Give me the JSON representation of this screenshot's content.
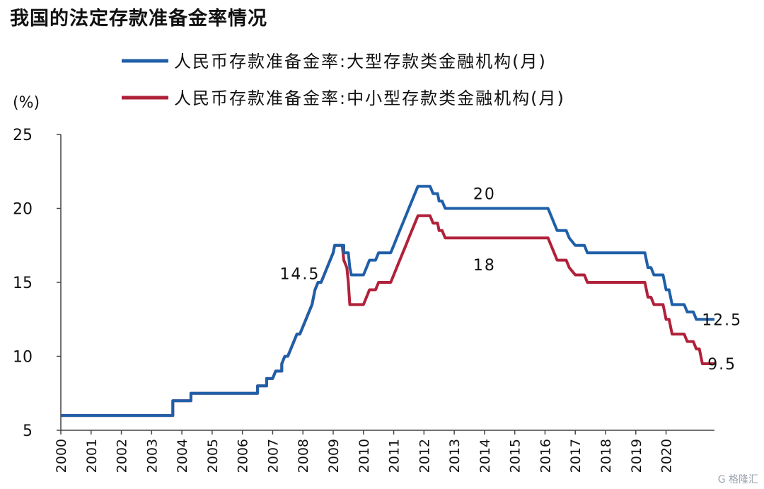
{
  "title": "我国的法定存款准备金率情况",
  "watermark": "G 格隆汇",
  "chart_data": {
    "type": "line",
    "title": "我国的法定存款准备金率情况",
    "ylabel": "(%)",
    "xlabel": "",
    "ylim": [
      5,
      25
    ],
    "xlim": [
      2000,
      2020.75
    ],
    "yticks": [
      "5",
      "10",
      "15",
      "20",
      "25"
    ],
    "xticks": [
      "2000",
      "2001",
      "2002",
      "2003",
      "2004",
      "2005",
      "2006",
      "2007",
      "2008",
      "2009",
      "2010",
      "2011",
      "2012",
      "2013",
      "2014",
      "2015",
      "2016",
      "2017",
      "2018",
      "2019",
      "2020"
    ],
    "grid": false,
    "legend_position": "top",
    "series": [
      {
        "name": "人民币存款准备金率:大型存款类金融机构(月)",
        "color": "#1f5fa8",
        "points": [
          [
            2000.0,
            6
          ],
          [
            2003.7,
            6
          ],
          [
            2003.7,
            7
          ],
          [
            2004.3,
            7
          ],
          [
            2004.3,
            7.5
          ],
          [
            2006.5,
            7.5
          ],
          [
            2006.5,
            8
          ],
          [
            2006.8,
            8
          ],
          [
            2006.8,
            8.5
          ],
          [
            2007.0,
            8.5
          ],
          [
            2007.1,
            9
          ],
          [
            2007.3,
            9
          ],
          [
            2007.3,
            9.5
          ],
          [
            2007.4,
            10
          ],
          [
            2007.5,
            10
          ],
          [
            2007.6,
            10.5
          ],
          [
            2007.7,
            11
          ],
          [
            2007.8,
            11.5
          ],
          [
            2007.9,
            11.5
          ],
          [
            2008.0,
            12
          ],
          [
            2008.1,
            12.5
          ],
          [
            2008.2,
            13
          ],
          [
            2008.3,
            13.5
          ],
          [
            2008.35,
            14
          ],
          [
            2008.4,
            14.5
          ],
          [
            2008.5,
            15
          ],
          [
            2008.6,
            15
          ],
          [
            2008.7,
            15.5
          ],
          [
            2008.8,
            16
          ],
          [
            2008.9,
            16.5
          ],
          [
            2009.0,
            17
          ],
          [
            2009.05,
            17.5
          ],
          [
            2009.35,
            17.5
          ],
          [
            2009.35,
            17
          ],
          [
            2009.5,
            17
          ],
          [
            2009.55,
            16
          ],
          [
            2009.6,
            15.5
          ],
          [
            2010.0,
            15.5
          ],
          [
            2010.1,
            16
          ],
          [
            2010.2,
            16.5
          ],
          [
            2010.4,
            16.5
          ],
          [
            2010.5,
            17
          ],
          [
            2010.9,
            17
          ],
          [
            2011.0,
            17.5
          ],
          [
            2011.1,
            18
          ],
          [
            2011.2,
            18.5
          ],
          [
            2011.3,
            19
          ],
          [
            2011.4,
            19.5
          ],
          [
            2011.5,
            20
          ],
          [
            2011.6,
            20.5
          ],
          [
            2011.7,
            21
          ],
          [
            2011.8,
            21.5
          ],
          [
            2012.2,
            21.5
          ],
          [
            2012.3,
            21
          ],
          [
            2012.45,
            21
          ],
          [
            2012.5,
            20.5
          ],
          [
            2012.6,
            20.5
          ],
          [
            2012.7,
            20
          ],
          [
            2016.1,
            20
          ],
          [
            2016.2,
            19.5
          ],
          [
            2016.3,
            19
          ],
          [
            2016.4,
            18.5
          ],
          [
            2016.7,
            18.5
          ],
          [
            2016.8,
            18
          ],
          [
            2017.0,
            17.5
          ],
          [
            2017.3,
            17.5
          ],
          [
            2017.4,
            17
          ],
          [
            2019.3,
            17
          ],
          [
            2019.4,
            16
          ],
          [
            2019.5,
            16
          ],
          [
            2019.6,
            15.5
          ],
          [
            2019.9,
            15.5
          ],
          [
            2020.0,
            14.5
          ],
          [
            2020.1,
            14.5
          ],
          [
            2020.2,
            13.5
          ],
          [
            2020.6,
            13.5
          ],
          [
            2020.7,
            13
          ],
          [
            2020.9,
            13
          ],
          [
            2021.0,
            12.5
          ],
          [
            2021.6,
            12.5
          ]
        ]
      },
      {
        "name": "人民币存款准备金率:中小型存款类金融机构(月)",
        "color": "#b0213a",
        "points": [
          [
            2000.0,
            6
          ],
          [
            2003.7,
            6
          ],
          [
            2003.7,
            7
          ],
          [
            2004.3,
            7
          ],
          [
            2004.3,
            7.5
          ],
          [
            2006.5,
            7.5
          ],
          [
            2006.5,
            8
          ],
          [
            2006.8,
            8
          ],
          [
            2006.8,
            8.5
          ],
          [
            2007.0,
            8.5
          ],
          [
            2007.1,
            9
          ],
          [
            2007.3,
            9
          ],
          [
            2007.3,
            9.5
          ],
          [
            2007.4,
            10
          ],
          [
            2007.5,
            10
          ],
          [
            2007.6,
            10.5
          ],
          [
            2007.7,
            11
          ],
          [
            2007.8,
            11.5
          ],
          [
            2007.9,
            11.5
          ],
          [
            2008.0,
            12
          ],
          [
            2008.1,
            12.5
          ],
          [
            2008.2,
            13
          ],
          [
            2008.3,
            13.5
          ],
          [
            2008.35,
            14
          ],
          [
            2008.4,
            14.5
          ],
          [
            2008.5,
            15
          ],
          [
            2008.6,
            15
          ],
          [
            2008.7,
            15.5
          ],
          [
            2008.8,
            16
          ],
          [
            2008.9,
            16.5
          ],
          [
            2009.0,
            17
          ],
          [
            2009.05,
            17.5
          ],
          [
            2009.3,
            17.5
          ],
          [
            2009.35,
            16.5
          ],
          [
            2009.45,
            16
          ],
          [
            2009.5,
            15
          ],
          [
            2009.55,
            13.5
          ],
          [
            2010.0,
            13.5
          ],
          [
            2010.1,
            14
          ],
          [
            2010.2,
            14.5
          ],
          [
            2010.4,
            14.5
          ],
          [
            2010.5,
            15
          ],
          [
            2010.9,
            15
          ],
          [
            2011.0,
            15.5
          ],
          [
            2011.1,
            16
          ],
          [
            2011.2,
            16.5
          ],
          [
            2011.3,
            17
          ],
          [
            2011.4,
            17.5
          ],
          [
            2011.5,
            18
          ],
          [
            2011.6,
            18.5
          ],
          [
            2011.7,
            19
          ],
          [
            2011.8,
            19.5
          ],
          [
            2012.2,
            19.5
          ],
          [
            2012.3,
            19
          ],
          [
            2012.45,
            19
          ],
          [
            2012.5,
            18.5
          ],
          [
            2012.6,
            18.5
          ],
          [
            2012.7,
            18
          ],
          [
            2016.1,
            18
          ],
          [
            2016.2,
            17.5
          ],
          [
            2016.3,
            17
          ],
          [
            2016.4,
            16.5
          ],
          [
            2016.7,
            16.5
          ],
          [
            2016.8,
            16
          ],
          [
            2017.0,
            15.5
          ],
          [
            2017.3,
            15.5
          ],
          [
            2017.4,
            15
          ],
          [
            2019.3,
            15
          ],
          [
            2019.4,
            14
          ],
          [
            2019.5,
            14
          ],
          [
            2019.6,
            13.5
          ],
          [
            2019.9,
            13.5
          ],
          [
            2020.0,
            12.5
          ],
          [
            2020.1,
            12.5
          ],
          [
            2020.2,
            11.5
          ],
          [
            2020.6,
            11.5
          ],
          [
            2020.7,
            11
          ],
          [
            2020.9,
            11
          ],
          [
            2021.0,
            10.5
          ],
          [
            2021.1,
            10.5
          ],
          [
            2021.2,
            9.5
          ],
          [
            2021.6,
            9.5
          ]
        ]
      }
    ],
    "annotations": [
      {
        "text": "14.5",
        "x": 2007.9,
        "y": 15.6
      },
      {
        "text": "20",
        "x": 2014.0,
        "y": 21.0
      },
      {
        "text": "18",
        "x": 2014.0,
        "y": 16.2
      },
      {
        "text": "12.5",
        "x": 2021.85,
        "y": 12.5
      },
      {
        "text": "9.5",
        "x": 2021.85,
        "y": 9.5
      }
    ]
  }
}
